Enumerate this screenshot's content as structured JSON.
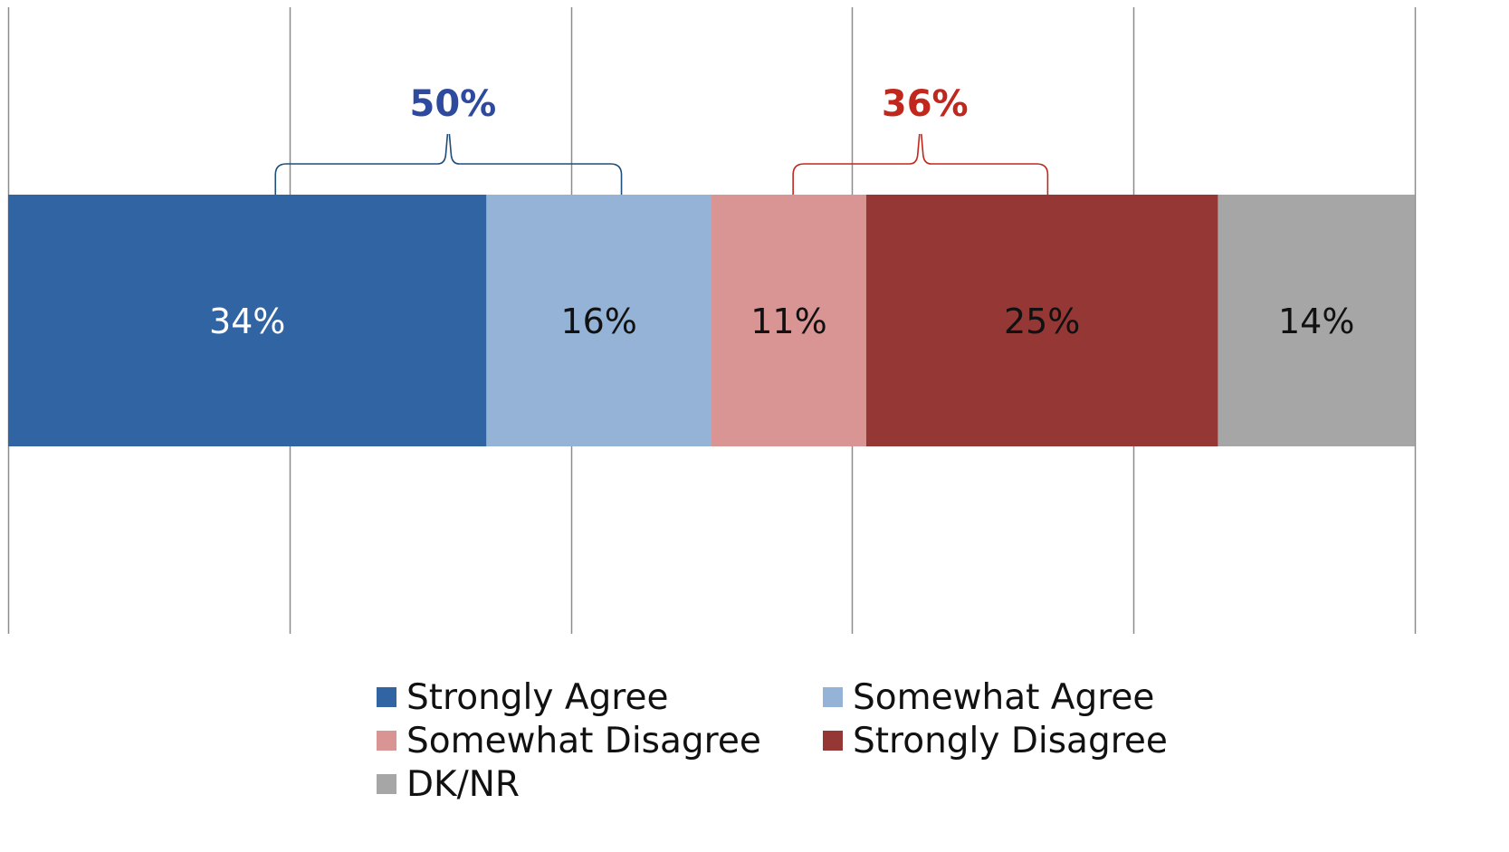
{
  "chart_data": {
    "type": "bar",
    "orientation": "horizontal",
    "stacked": true,
    "categories": [
      ""
    ],
    "xlim": [
      0,
      100
    ],
    "grid": true,
    "legend_placement": "bottom",
    "series": [
      {
        "name": "Strongly Agree",
        "values": [
          34
        ],
        "label": "34%",
        "color": "#3164a3",
        "label_color": "#ffffff"
      },
      {
        "name": "Somewhat Agree",
        "values": [
          16
        ],
        "label": "16%",
        "color": "#95b3d7",
        "label_color": "#111111"
      },
      {
        "name": "Somewhat Disagree",
        "values": [
          11
        ],
        "label": "11%",
        "color": "#d99594",
        "label_color": "#111111"
      },
      {
        "name": "Strongly Disagree",
        "values": [
          25
        ],
        "label": "25%",
        "color": "#953735",
        "label_color": "#111111"
      },
      {
        "name": "DK/NR",
        "values": [
          14
        ],
        "label": "14%",
        "color": "#a6a6a6",
        "label_color": "#111111"
      }
    ],
    "annotations": [
      {
        "text": "50%",
        "color": "#2e4a9e",
        "bracket_color": "#1f4e79",
        "from": 19,
        "to": 43.6
      },
      {
        "text": "36%",
        "color": "#c0281e",
        "bracket_color": "#c0281e",
        "from": 55.8,
        "to": 73.9
      }
    ]
  }
}
